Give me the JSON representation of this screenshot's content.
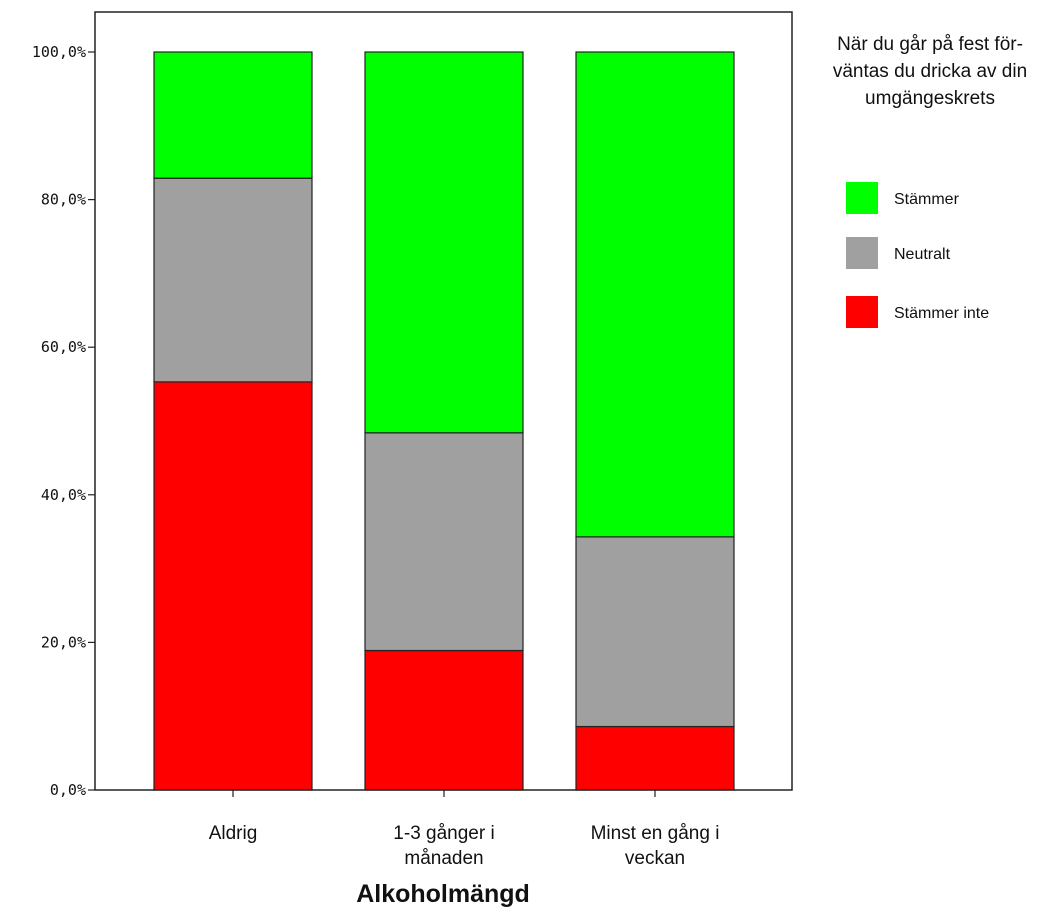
{
  "chart_data": {
    "type": "bar",
    "stacked": true,
    "xlabel": "Alkoholmängd",
    "ylabel": "",
    "ylim": [
      0,
      100
    ],
    "yticks": [
      "0,0%",
      "20,0%",
      "40,0%",
      "60,0%",
      "80,0%",
      "100,0%"
    ],
    "categories": [
      [
        "Aldrig"
      ],
      [
        "1-3 gånger i",
        "månaden"
      ],
      [
        "Minst en gång i",
        "veckan"
      ]
    ],
    "series": [
      {
        "name": "Stämmer inte",
        "color": "#ff0000",
        "values": [
          55.3,
          18.9,
          8.6
        ]
      },
      {
        "name": "Neutralt",
        "color": "#a0a0a0",
        "values": [
          27.6,
          29.5,
          25.7
        ]
      },
      {
        "name": "Stämmer",
        "color": "#00ff00",
        "values": [
          17.1,
          51.6,
          65.7
        ]
      }
    ],
    "legend": {
      "title": [
        "När du går på fest för-",
        "väntas du dricka av din",
        "umgängeskrets"
      ],
      "order": [
        "Stämmer",
        "Neutralt",
        "Stämmer inte"
      ],
      "position": "right"
    },
    "grid": false
  }
}
